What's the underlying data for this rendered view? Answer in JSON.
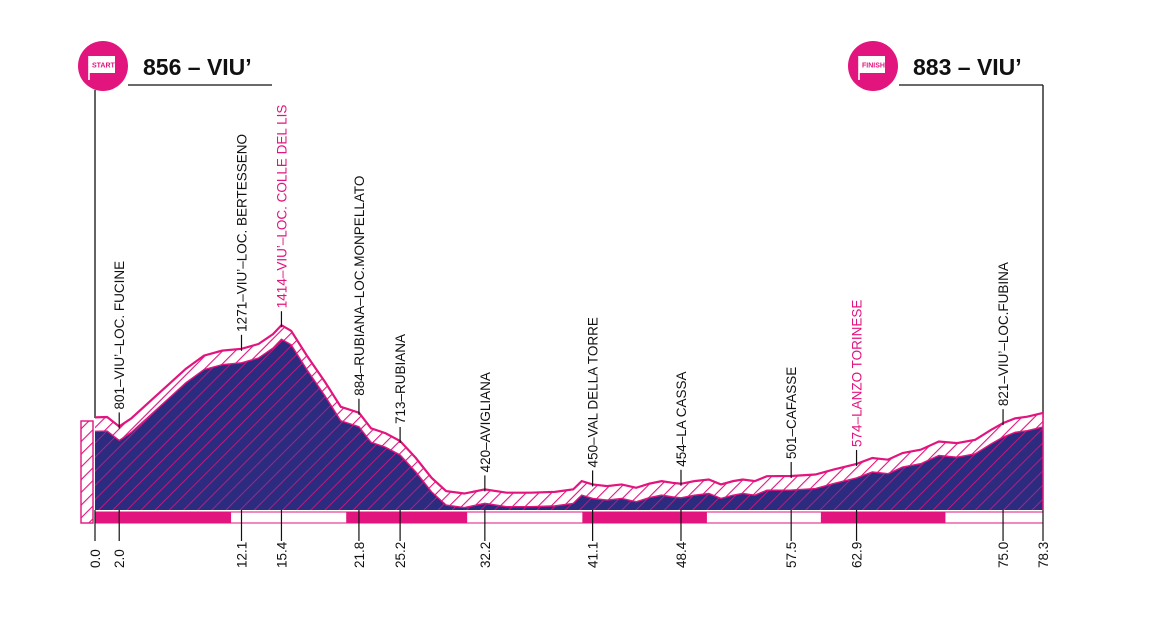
{
  "header": {
    "start_badge": "START",
    "start_title": "856 – VIU’",
    "finish_badge": "FINISH",
    "finish_title": "883 – VIU’"
  },
  "colors": {
    "accent": "#e2147e",
    "fill": "#2b2c7f",
    "line": "#111111",
    "strip_white": "#ffffff"
  },
  "chart_data": {
    "type": "area",
    "title": "",
    "xlabel": "",
    "ylabel": "",
    "xlim": [
      0,
      78.3
    ],
    "ylim": [
      0,
      1500
    ],
    "grid": false,
    "x": [
      0,
      1.0,
      2.0,
      3.0,
      4.5,
      6.0,
      7.5,
      9.0,
      10.5,
      12.1,
      13.5,
      14.7,
      15.4,
      16.2,
      17.5,
      19.0,
      20.3,
      21.8,
      22.8,
      24.0,
      25.2,
      26.5,
      27.8,
      29.0,
      30.5,
      32.2,
      34.0,
      36.0,
      38.0,
      39.5,
      40.2,
      41.1,
      42.3,
      43.5,
      44.7,
      45.8,
      46.8,
      47.7,
      48.4,
      49.5,
      50.7,
      51.7,
      52.7,
      53.5,
      54.5,
      55.5,
      57.5,
      59.5,
      61.0,
      62.9,
      64.2,
      65.5,
      66.7,
      68.2,
      69.7,
      71.2,
      72.7,
      74.0,
      75.0,
      76.0,
      77.0,
      78.3
    ],
    "elevation": [
      856,
      858,
      801,
      850,
      950,
      1050,
      1150,
      1230,
      1260,
      1271,
      1300,
      1360,
      1414,
      1380,
      1230,
      1070,
      920,
      884,
      790,
      760,
      713,
      610,
      490,
      410,
      395,
      420,
      400,
      400,
      405,
      420,
      470,
      450,
      440,
      450,
      430,
      455,
      470,
      460,
      454,
      470,
      480,
      450,
      470,
      480,
      470,
      500,
      501,
      510,
      540,
      574,
      610,
      600,
      640,
      660,
      710,
      700,
      720,
      780,
      821,
      850,
      860,
      883
    ],
    "km_ticks": [
      0.0,
      2.0,
      12.1,
      15.4,
      21.8,
      25.2,
      32.2,
      41.1,
      48.4,
      57.5,
      62.9,
      75.0,
      78.3
    ],
    "km_tick_labels": [
      "0.0",
      "2.0",
      "12.1",
      "15.4",
      "21.8",
      "25.2",
      "32.2",
      "41.1",
      "48.4",
      "57.5",
      "62.9",
      "75.0",
      "78.3"
    ],
    "segments": [
      {
        "from": 0,
        "to": 11.2,
        "color": "#e2147e"
      },
      {
        "from": 11.2,
        "to": 20.8,
        "color": "#ffffff"
      },
      {
        "from": 20.8,
        "to": 30.7,
        "color": "#e2147e"
      },
      {
        "from": 30.7,
        "to": 40.3,
        "color": "#ffffff"
      },
      {
        "from": 40.3,
        "to": 50.5,
        "color": "#e2147e"
      },
      {
        "from": 50.5,
        "to": 60.0,
        "color": "#ffffff"
      },
      {
        "from": 60.0,
        "to": 70.2,
        "color": "#e2147e"
      },
      {
        "from": 70.2,
        "to": 78.3,
        "color": "#ffffff"
      }
    ],
    "waypoints": [
      {
        "km": 2.0,
        "label": "801–VIU’–LOC. FUCINE",
        "highlight": false
      },
      {
        "km": 12.1,
        "label": "1271–VIU’–LOC. BERTESSENO",
        "highlight": false
      },
      {
        "km": 15.4,
        "label": "1414–VIU’–LOC. COLLE DEL LIS",
        "highlight": true
      },
      {
        "km": 21.8,
        "label": "884–RUBIANA–LOC.MONPELLATO",
        "highlight": false
      },
      {
        "km": 25.2,
        "label": "713–RUBIANA",
        "highlight": false
      },
      {
        "km": 32.2,
        "label": "420–AVIGLIANA",
        "highlight": false
      },
      {
        "km": 41.1,
        "label": "450–VAL DELLA TORRE",
        "highlight": false
      },
      {
        "km": 48.4,
        "label": "454–LA CASSA",
        "highlight": false
      },
      {
        "km": 57.5,
        "label": "501–CAFASSE",
        "highlight": false
      },
      {
        "km": 62.9,
        "label": "574–LANZO TORINESE",
        "highlight": true
      },
      {
        "km": 75.0,
        "label": "821–VIU’–LOC.FUBINA",
        "highlight": false
      }
    ]
  }
}
